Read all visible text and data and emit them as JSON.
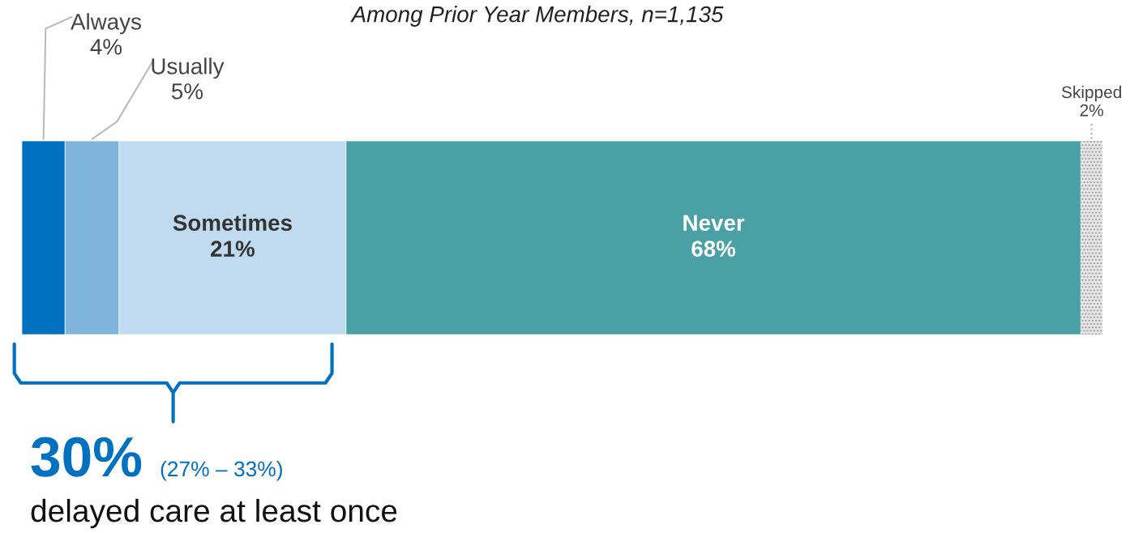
{
  "chart_data": {
    "type": "bar",
    "orientation": "horizontal",
    "stacked": true,
    "title": "Among Prior Year Members, n=1,135",
    "categories": [
      null
    ],
    "series": [
      {
        "name": "Always",
        "color": "#0070c0",
        "values": [
          4
        ],
        "value_labels": [
          "4%"
        ]
      },
      {
        "name": "Usually",
        "color": "#7fb5dc",
        "values": [
          5
        ],
        "value_labels": [
          "5%"
        ]
      },
      {
        "name": "Sometimes",
        "color": "#c0dbef",
        "values": [
          21
        ],
        "value_labels": [
          "21%"
        ]
      },
      {
        "name": "Never",
        "color": "#4aa1a5",
        "values": [
          68
        ],
        "value_labels": [
          "68%"
        ]
      },
      {
        "name": "Skipped",
        "color": "#e6e6e6",
        "values": [
          2
        ],
        "value_labels": [
          "2%"
        ]
      }
    ],
    "annotations": [
      "30%",
      "(27% – 33%)",
      "delayed care at least once"
    ],
    "legend": false
  }
}
